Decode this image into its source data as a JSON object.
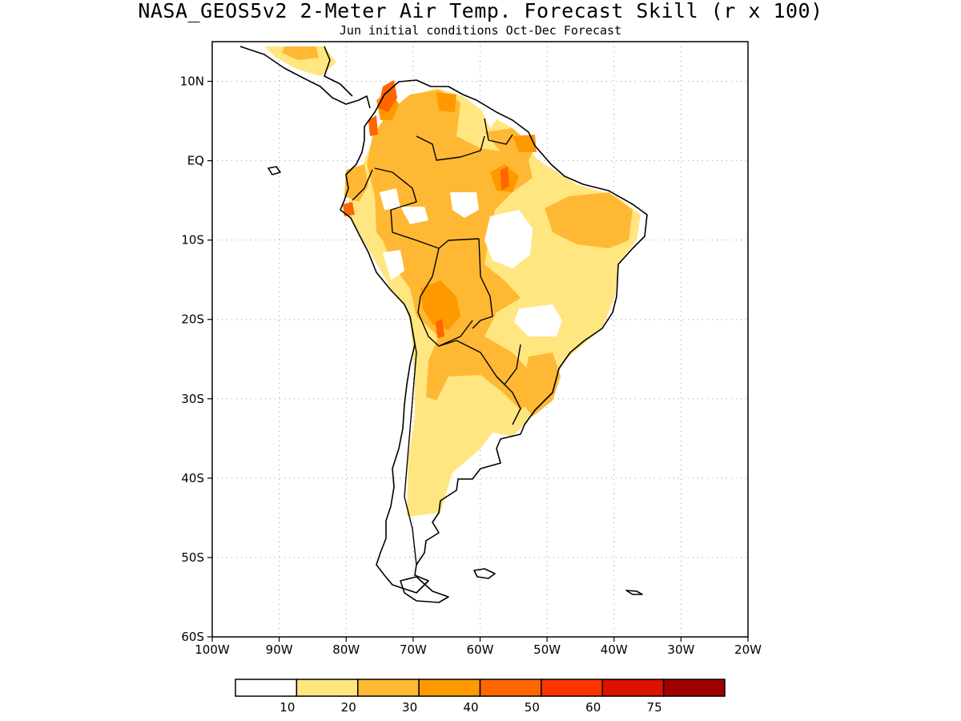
{
  "title": "NASA_GEOS5v2 2-Meter Air Temp. Forecast Skill (r x 100)",
  "subtitle": "Jun initial conditions  Oct-Dec Forecast",
  "map": {
    "lat_labels": [
      "10N",
      "EQ",
      "10S",
      "20S",
      "30S",
      "40S",
      "50S",
      "60S"
    ],
    "lon_labels": [
      "100W",
      "90W",
      "80W",
      "70W",
      "60W",
      "50W",
      "40W",
      "30W",
      "20W"
    ],
    "lat_values": [
      10,
      0,
      -10,
      -20,
      -30,
      -40,
      -50,
      -60
    ],
    "lon_values": [
      -100,
      -90,
      -80,
      -70,
      -60,
      -50,
      -40,
      -30,
      -20
    ],
    "lon_range": [
      -100,
      -20
    ],
    "lat_range": [
      -60,
      15
    ],
    "grid": true
  },
  "legend": {
    "labels": [
      "10",
      "20",
      "30",
      "40",
      "50",
      "60",
      "75"
    ],
    "colors": [
      "#ffffff",
      "#ffe680",
      "#ffb833",
      "#ff9900",
      "#ff6600",
      "#ff3300",
      "#dd1100",
      "#a00000"
    ]
  },
  "colors": {
    "c10_20": "#ffe680",
    "c20_30": "#ffb833",
    "c30_40": "#ff9900",
    "c40_50": "#ff6600"
  }
}
